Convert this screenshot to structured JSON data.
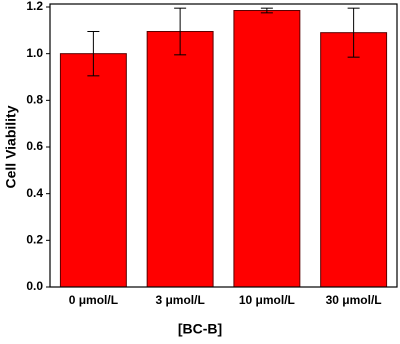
{
  "chart_data": {
    "type": "bar",
    "xlabel": "[BC-B]",
    "ylabel": "Cell Viability",
    "categories": [
      "0 μmol/L",
      "3 μmol/L",
      "10 μmol/L",
      "30 μmol/L"
    ],
    "series": [
      {
        "color": "#ff0000",
        "values": [
          1.0,
          1.095,
          1.185,
          1.09
        ],
        "errors": [
          0.095,
          0.1,
          0.01,
          0.105
        ]
      }
    ],
    "ylim": [
      0,
      1.2
    ],
    "yticks": [
      {
        "value": 0,
        "label": "0.0"
      },
      0.2,
      0.4,
      0.6,
      0.8,
      {
        "value": 1,
        "label": "1.0"
      },
      1.2
    ]
  }
}
